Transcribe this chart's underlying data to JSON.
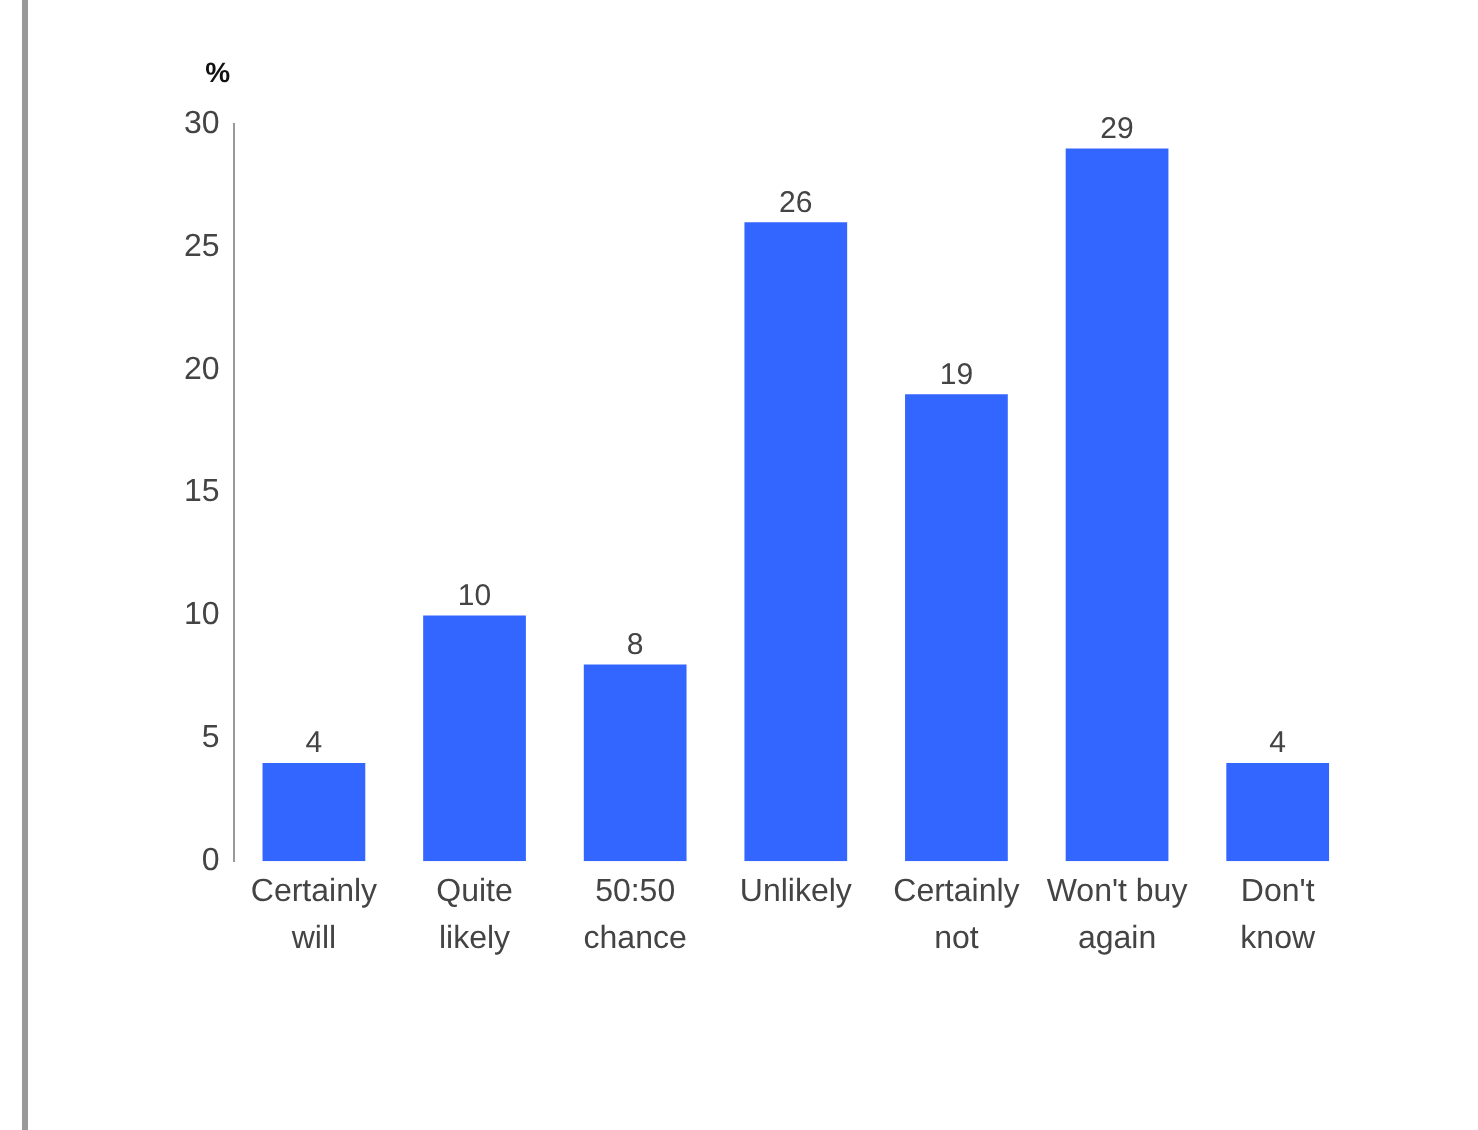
{
  "chart_data": {
    "type": "bar",
    "ylabel": "%",
    "categories": [
      "Certainly will",
      "Quite likely",
      "50:50 chance",
      "Unlikely",
      "Certainly not",
      "Won't buy again",
      "Don't know"
    ],
    "values": [
      4,
      10,
      8,
      26,
      19,
      29,
      4
    ],
    "color": "#3366ff",
    "ylim": [
      0,
      30
    ],
    "yticks": [
      0,
      5,
      10,
      15,
      20,
      25,
      30
    ],
    "grid": false,
    "data_labels": true
  }
}
